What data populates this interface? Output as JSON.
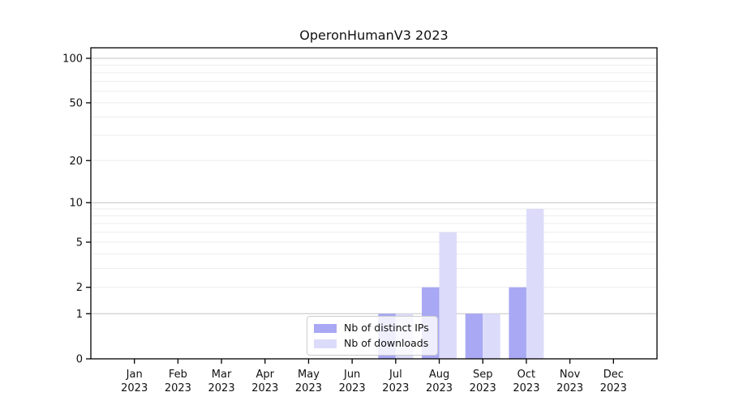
{
  "chart_data": {
    "type": "bar",
    "title": "OperonHumanV3 2023",
    "x_labels": [
      [
        "Jan",
        "2023"
      ],
      [
        "Feb",
        "2023"
      ],
      [
        "Mar",
        "2023"
      ],
      [
        "Apr",
        "2023"
      ],
      [
        "May",
        "2023"
      ],
      [
        "Jun",
        "2023"
      ],
      [
        "Jul",
        "2023"
      ],
      [
        "Aug",
        "2023"
      ],
      [
        "Sep",
        "2023"
      ],
      [
        "Oct",
        "2023"
      ],
      [
        "Nov",
        "2023"
      ],
      [
        "Dec",
        "2023"
      ]
    ],
    "series": [
      {
        "name": "Nb of distinct IPs",
        "color": "#a8a8f4",
        "values": [
          0,
          0,
          0,
          0,
          0,
          0,
          1,
          2,
          1,
          2,
          0,
          0
        ]
      },
      {
        "name": "Nb of downloads",
        "color": "#dcdcfa",
        "values": [
          0,
          0,
          0,
          0,
          0,
          0,
          1,
          6,
          1,
          9,
          0,
          0
        ]
      }
    ],
    "yticks": [
      0,
      1,
      2,
      5,
      10,
      20,
      50,
      100
    ],
    "scale": "log10(1+x)",
    "ylim": [
      0,
      117
    ],
    "xlabel": "",
    "ylabel": "",
    "gridlines": {
      "major_values": [
        1,
        10,
        100
      ],
      "minor_values": [
        2,
        3,
        4,
        5,
        6,
        7,
        8,
        9,
        20,
        30,
        40,
        50,
        60,
        70,
        80,
        90
      ]
    },
    "legend_position": "inside bottom-center"
  },
  "colors": {
    "background": "#ffffff",
    "axis": "#000000",
    "tick_text": "#111111",
    "major_grid": "#c3c3c3",
    "minor_grid": "#ededed",
    "legend_border": "#cccccc"
  }
}
